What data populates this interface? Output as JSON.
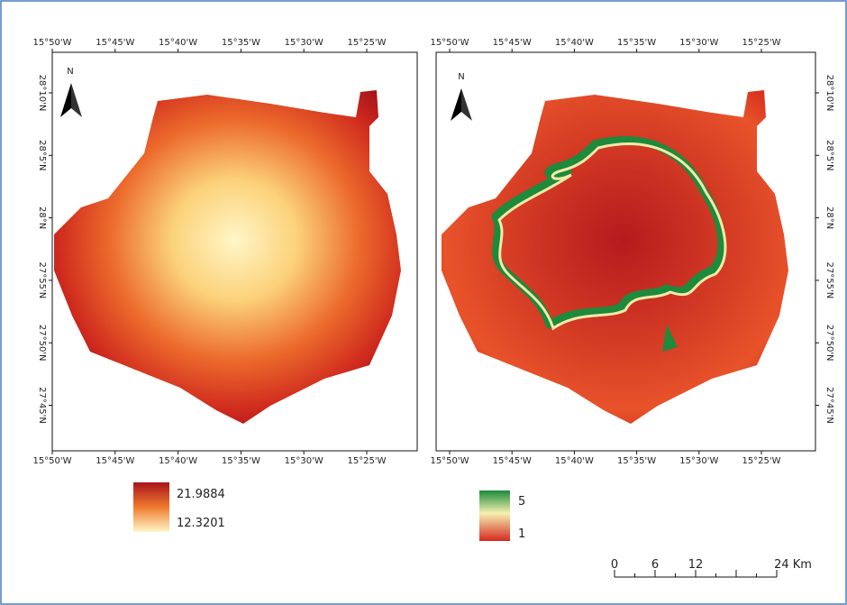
{
  "maps": [
    {
      "lon_labels": [
        "15°50'W",
        "15°45'W",
        "15°40'W",
        "15°35'W",
        "15°30'W",
        "15°25'W"
      ],
      "lat_labels": [
        "28°10'N",
        "28°5'N",
        "28°N",
        "27°55'N",
        "27°50'N",
        "27°45'N"
      ],
      "north": "N",
      "legend": {
        "high": "21.9884",
        "low": "12.3201"
      }
    },
    {
      "lon_labels": [
        "15°50'W",
        "15°45'W",
        "15°40'W",
        "15°35'W",
        "15°30'W",
        "15°25'W"
      ],
      "lat_labels": [
        "28°10'N",
        "28°5'N",
        "28°N",
        "27°55'N",
        "27°50'N",
        "27°45'N"
      ],
      "north": "N",
      "legend": {
        "high": "5",
        "low": "1"
      }
    }
  ],
  "scale_bar": {
    "labels": [
      "0",
      "6",
      "12",
      "24 Km"
    ]
  }
}
